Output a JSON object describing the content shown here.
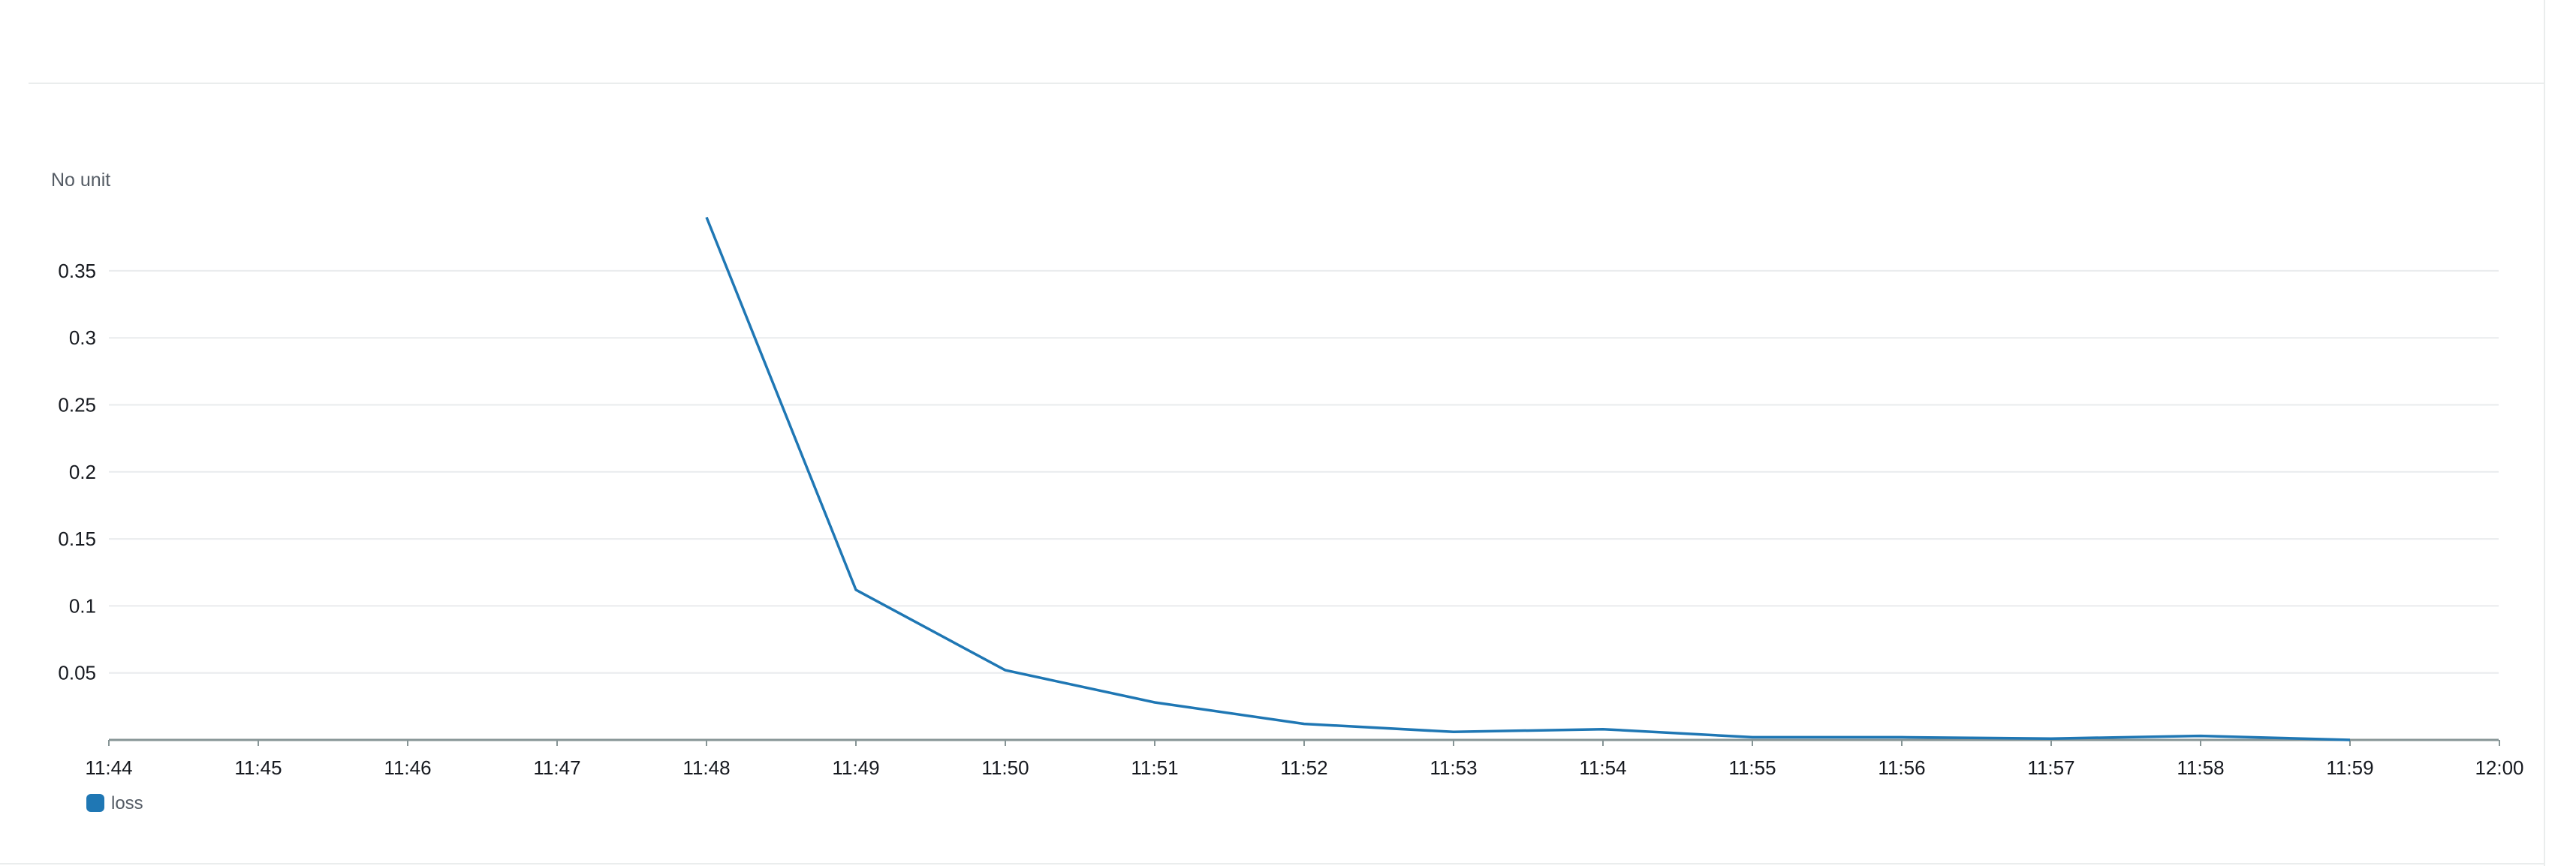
{
  "chart_data": {
    "type": "line",
    "title": "",
    "unit_label": "No unit",
    "xlabel": "",
    "ylabel": "",
    "x_ticks": [
      "11:44",
      "11:45",
      "11:46",
      "11:47",
      "11:48",
      "11:49",
      "11:50",
      "11:51",
      "11:52",
      "11:53",
      "11:54",
      "11:55",
      "11:56",
      "11:57",
      "11:58",
      "11:59",
      "12:00"
    ],
    "y_ticks": [
      {
        "value": 0.05,
        "label": "0.05"
      },
      {
        "value": 0.1,
        "label": "0.1"
      },
      {
        "value": 0.15,
        "label": "0.15"
      },
      {
        "value": 0.2,
        "label": "0.2"
      },
      {
        "value": 0.25,
        "label": "0.25"
      },
      {
        "value": 0.3,
        "label": "0.3"
      },
      {
        "value": 0.35,
        "label": "0.35"
      }
    ],
    "ylim": [
      0,
      0.4
    ],
    "grid": true,
    "legend_position": "bottom-left",
    "series": [
      {
        "name": "loss",
        "color": "#1f77b4",
        "x": [
          "11:48",
          "11:49",
          "11:50",
          "11:51",
          "11:52",
          "11:53",
          "11:54",
          "11:55",
          "11:56",
          "11:57",
          "11:58",
          "11:59"
        ],
        "y": [
          0.39,
          0.112,
          0.052,
          0.028,
          0.012,
          0.006,
          0.008,
          0.002,
          0.002,
          0.001,
          0.003,
          0.0
        ]
      }
    ]
  }
}
